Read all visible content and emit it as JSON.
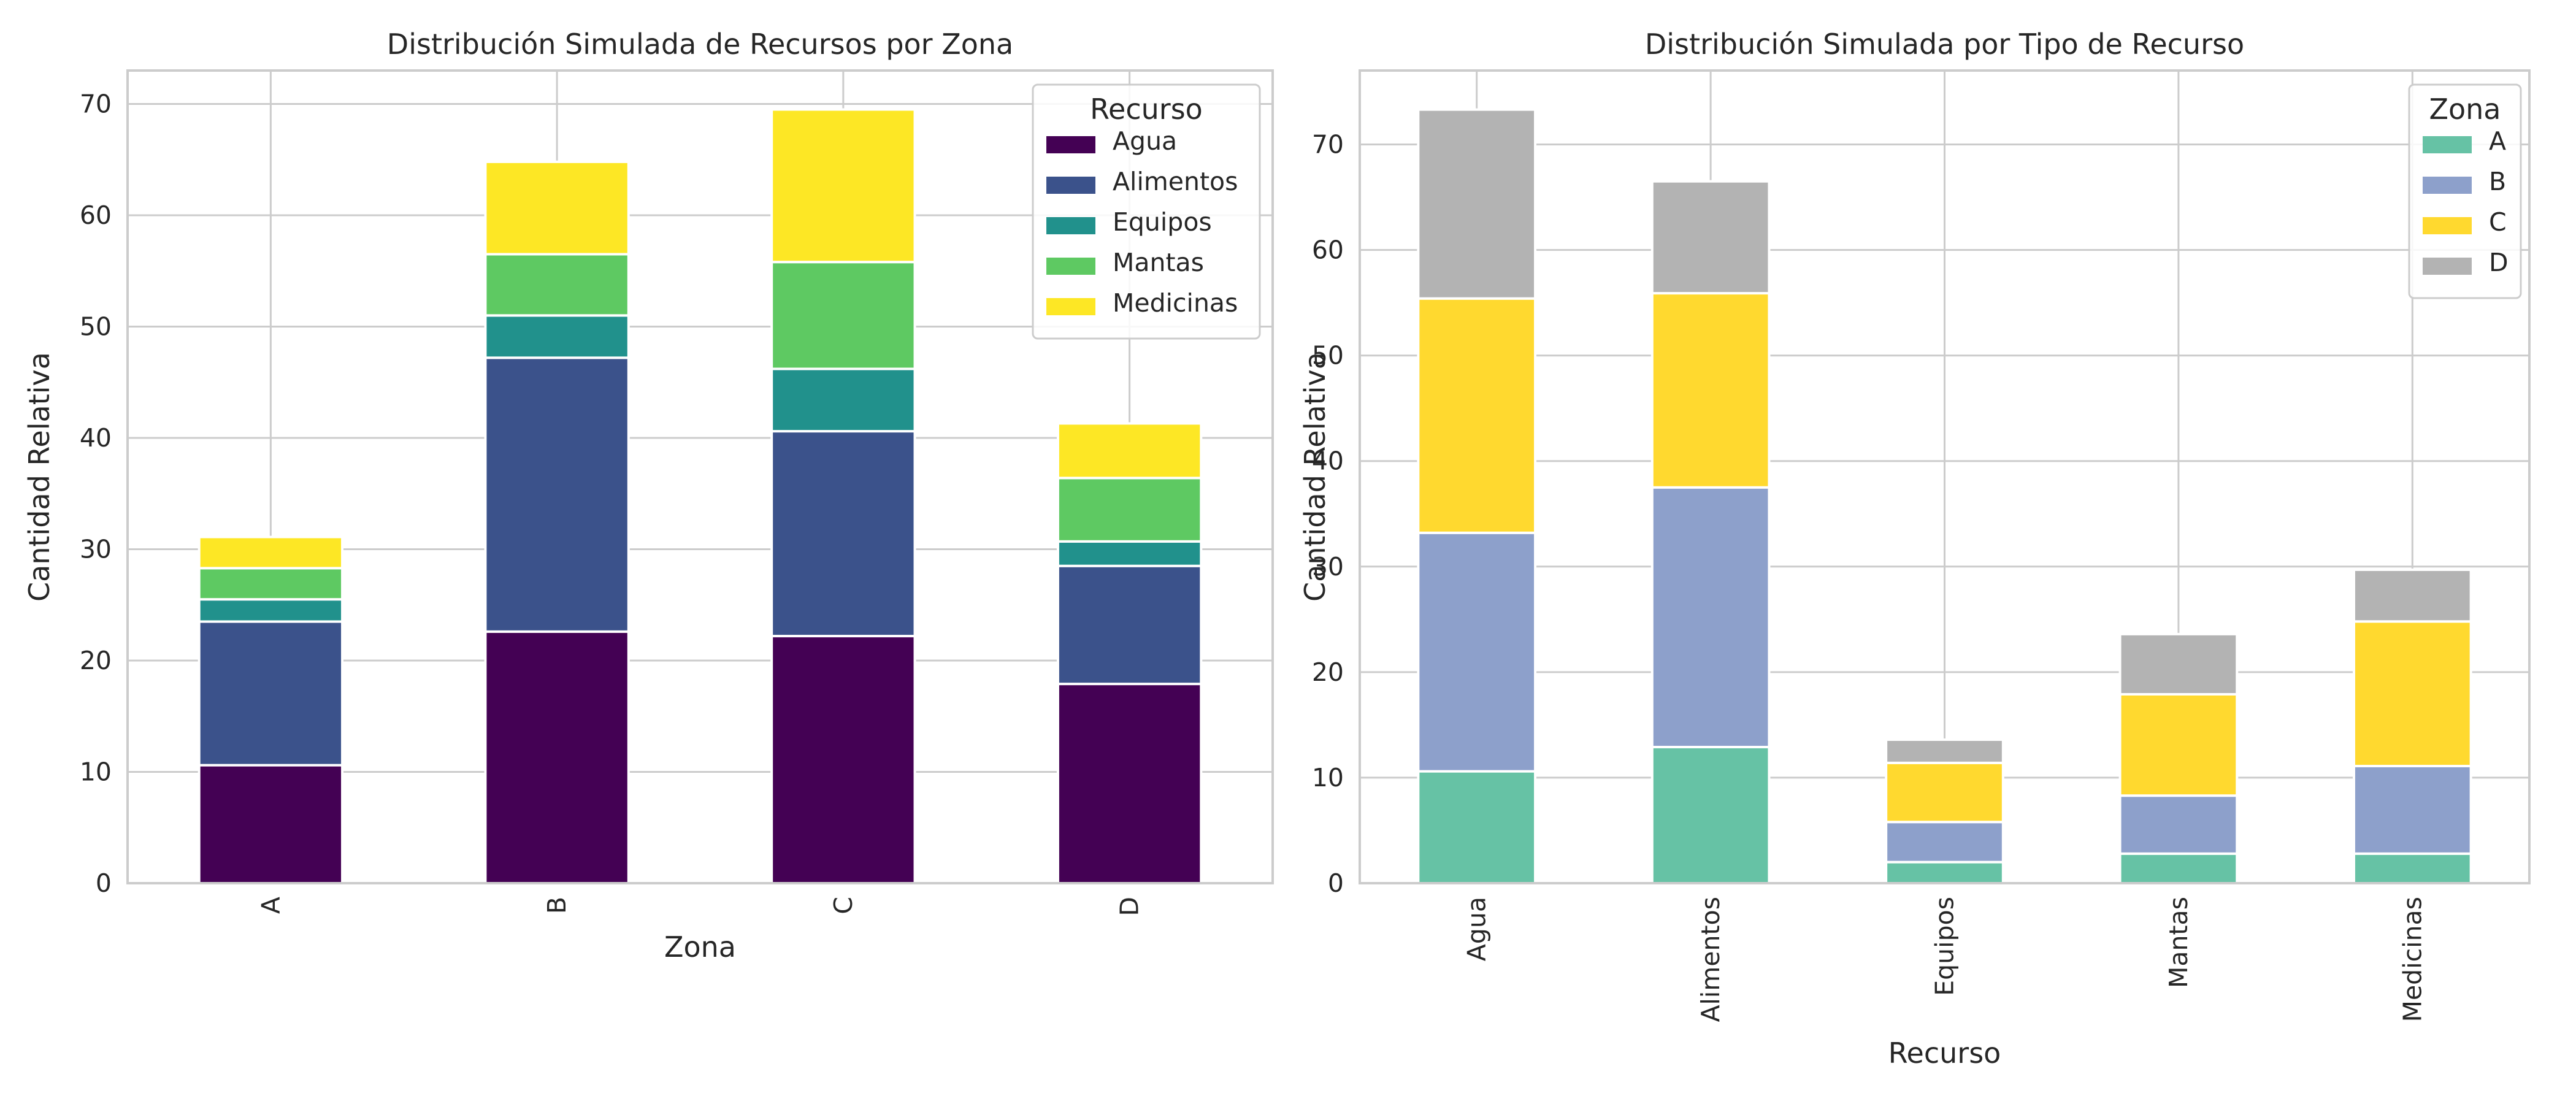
{
  "chart_data": [
    {
      "type": "bar",
      "stacked": true,
      "title": "Distribución Simulada de Recursos por Zona",
      "xlabel": "Zona",
      "ylabel": "Cantidad Relativa",
      "categories": [
        "A",
        "B",
        "C",
        "D"
      ],
      "ylim": [
        0,
        73
      ],
      "yticks": [
        0,
        10,
        20,
        30,
        40,
        50,
        60,
        70
      ],
      "grid": true,
      "legend": {
        "title": "Recurso",
        "placement": "top-right"
      },
      "series": [
        {
          "name": "Agua",
          "color": "#440154",
          "values": [
            10.6,
            22.6,
            22.2,
            17.9
          ]
        },
        {
          "name": "Alimentos",
          "color": "#3b528b",
          "values": [
            12.9,
            24.6,
            18.4,
            10.6
          ]
        },
        {
          "name": "Equipos",
          "color": "#21918c",
          "values": [
            2.0,
            3.8,
            5.6,
            2.2
          ]
        },
        {
          "name": "Mantas",
          "color": "#5ec962",
          "values": [
            2.8,
            5.5,
            9.6,
            5.7
          ]
        },
        {
          "name": "Medicinas",
          "color": "#fde725",
          "values": [
            2.8,
            8.3,
            13.7,
            4.9
          ]
        }
      ]
    },
    {
      "type": "bar",
      "stacked": true,
      "title": "Distribución Simulada por Tipo de Recurso",
      "xlabel": "Recurso",
      "ylabel": "Cantidad Relativa",
      "categories": [
        "Agua",
        "Alimentos",
        "Equipos",
        "Mantas",
        "Medicinas"
      ],
      "ylim": [
        0,
        77
      ],
      "yticks": [
        0,
        10,
        20,
        30,
        40,
        50,
        60,
        70
      ],
      "grid": true,
      "legend": {
        "title": "Zona",
        "placement": "top-right"
      },
      "series": [
        {
          "name": "A",
          "color": "#66c2a5",
          "values": [
            10.6,
            12.9,
            2.0,
            2.8,
            2.8
          ]
        },
        {
          "name": "B",
          "color": "#8da0cb",
          "values": [
            22.6,
            24.6,
            3.8,
            5.5,
            8.3
          ]
        },
        {
          "name": "C",
          "color": "#ffd92f",
          "values": [
            22.2,
            18.4,
            5.6,
            9.6,
            13.7
          ]
        },
        {
          "name": "D",
          "color": "#b3b3b3",
          "values": [
            17.9,
            10.6,
            2.2,
            5.7,
            4.9
          ]
        }
      ]
    }
  ]
}
